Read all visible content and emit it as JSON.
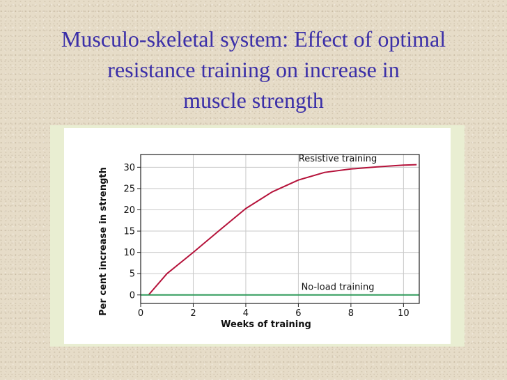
{
  "slide": {
    "title_lines": [
      "Musculo-skeletal system: Effect of optimal",
      "resistance  training on increase in",
      "muscle strength"
    ]
  },
  "chart_data": {
    "type": "line",
    "title": "",
    "xlabel": "Weeks of training",
    "ylabel": "Per cent increase in strength",
    "xlim": [
      0,
      10.6
    ],
    "ylim": [
      -2,
      33
    ],
    "xticks": [
      0,
      2,
      4,
      6,
      8,
      10
    ],
    "yticks": [
      0,
      5,
      10,
      15,
      20,
      25,
      30
    ],
    "grid": true,
    "series": [
      {
        "name": "Resistive training",
        "color": "#b5123a",
        "x": [
          0.3,
          1,
          2,
          3,
          4,
          5,
          6,
          7,
          8,
          9,
          10,
          10.5
        ],
        "y": [
          0,
          5,
          10,
          15.2,
          20.3,
          24.2,
          27,
          28.8,
          29.6,
          30.1,
          30.5,
          30.6
        ]
      },
      {
        "name": "No-load training",
        "color": "#2e9a5a",
        "x": [
          0,
          10.6
        ],
        "y": [
          0,
          0
        ]
      }
    ]
  }
}
